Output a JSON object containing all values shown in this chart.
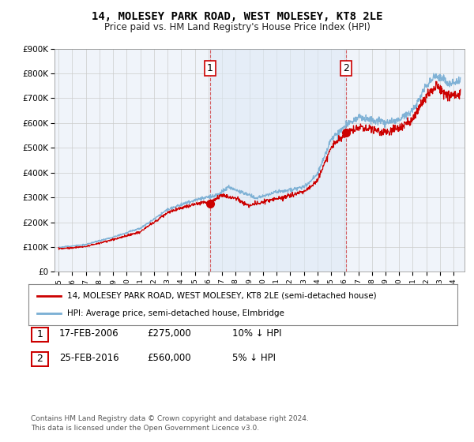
{
  "title": "14, MOLESEY PARK ROAD, WEST MOLESEY, KT8 2LE",
  "subtitle": "Price paid vs. HM Land Registry's House Price Index (HPI)",
  "ylabel_ticks": [
    "£0",
    "£100K",
    "£200K",
    "£300K",
    "£400K",
    "£500K",
    "£600K",
    "£700K",
    "£800K",
    "£900K"
  ],
  "ylim": [
    0,
    900000
  ],
  "xlim_start": 1994.7,
  "xlim_end": 2024.8,
  "sale1_x": 2006.12,
  "sale1_y": 275000,
  "sale1_label": "1",
  "sale2_x": 2016.12,
  "sale2_y": 560000,
  "sale2_label": "2",
  "sale_color": "#cc0000",
  "hpi_color": "#7aafd4",
  "dashed_color": "#cc0000",
  "shade_color": "#dce9f5",
  "legend_label1": "14, MOLESEY PARK ROAD, WEST MOLESEY, KT8 2LE (semi-detached house)",
  "legend_label2": "HPI: Average price, semi-detached house, Elmbridge",
  "table_row1": [
    "1",
    "17-FEB-2006",
    "£275,000",
    "10% ↓ HPI"
  ],
  "table_row2": [
    "2",
    "25-FEB-2016",
    "£560,000",
    "5% ↓ HPI"
  ],
  "footnote": "Contains HM Land Registry data © Crown copyright and database right 2024.\nThis data is licensed under the Open Government Licence v3.0.",
  "background_color": "#ffffff",
  "grid_color": "#cccccc",
  "plot_bg": "#f0f4fa",
  "title_fontsize": 10,
  "subtitle_fontsize": 8.5,
  "tick_fontsize": 7.5
}
